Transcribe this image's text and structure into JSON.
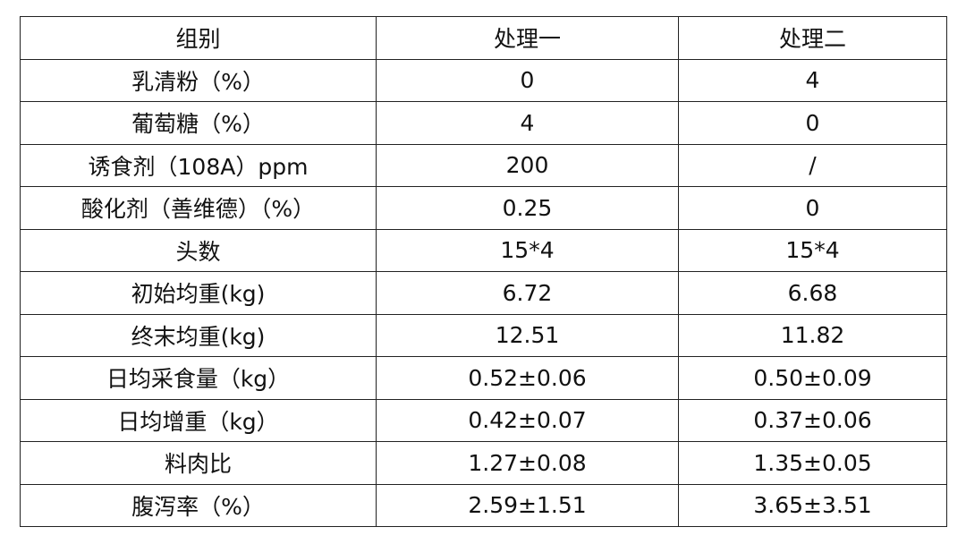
{
  "table": {
    "header": [
      "组别",
      "处理一",
      "处理二"
    ],
    "rows": [
      [
        "乳清粉（%）",
        "0",
        "4"
      ],
      [
        "葡萄糖（%）",
        "4",
        "0"
      ],
      [
        "诱食剂（108A）ppm",
        "200",
        "/"
      ],
      [
        "酸化剂（善维德）（%）",
        "0.25",
        "0"
      ],
      [
        "头数",
        "15*4",
        "15*4"
      ],
      [
        "初始均重(kg)",
        "6.72",
        "6.68"
      ],
      [
        "终末均重(kg)",
        "12.51",
        "11.82"
      ],
      [
        "日均采食量（kg）",
        "0.52±0.06",
        "0.50±0.09"
      ],
      [
        "日均增重（kg）",
        "0.42±0.07",
        "0.37±0.06"
      ],
      [
        "料肉比",
        "1.27±0.08",
        "1.35±0.05"
      ],
      [
        "腹泻率（%）",
        "2.59±1.51",
        "3.65±3.51"
      ]
    ]
  }
}
